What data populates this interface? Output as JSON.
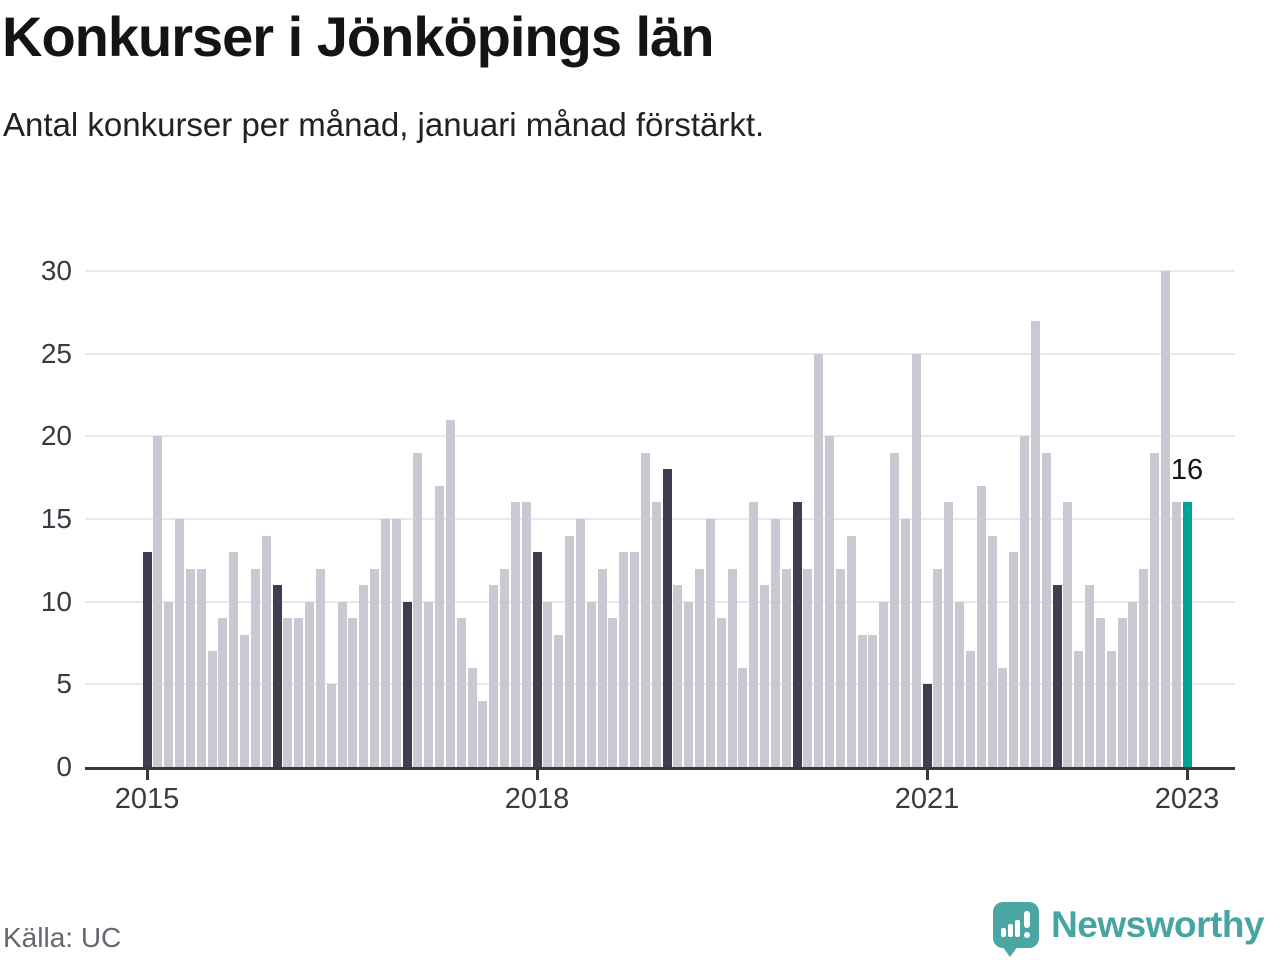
{
  "header": {
    "title": "Konkurser i Jönköpings län",
    "subtitle": "Antal konkurser per månad, januari månad förstärkt."
  },
  "footer": {
    "source": "Källa: UC",
    "brand": "Newsworthy"
  },
  "chart_data": {
    "type": "bar",
    "title": "Konkurser i Jönköpings län",
    "subtitle": "Antal konkurser per månad, januari månad förstärkt.",
    "frequency": "monthly",
    "x_start": "2015-01",
    "x_end": "2023-01",
    "values": [
      13,
      20,
      10,
      15,
      12,
      12,
      7,
      9,
      13,
      8,
      12,
      14,
      11,
      9,
      9,
      10,
      12,
      5,
      10,
      9,
      11,
      12,
      15,
      15,
      10,
      19,
      10,
      17,
      21,
      9,
      6,
      4,
      11,
      12,
      16,
      16,
      13,
      10,
      8,
      14,
      15,
      10,
      12,
      9,
      13,
      13,
      19,
      16,
      18,
      11,
      10,
      12,
      15,
      9,
      12,
      6,
      16,
      11,
      15,
      12,
      16,
      12,
      25,
      20,
      12,
      14,
      8,
      8,
      10,
      19,
      15,
      25,
      5,
      12,
      16,
      10,
      7,
      17,
      14,
      6,
      13,
      20,
      27,
      19,
      11,
      16,
      7,
      11,
      9,
      7,
      9,
      10,
      12,
      19,
      30,
      16,
      16
    ],
    "ylim": [
      0,
      30
    ],
    "yticks": [
      0,
      5,
      10,
      15,
      20,
      25,
      30
    ],
    "xticks": [
      {
        "index": 0,
        "label": "2015"
      },
      {
        "index": 36,
        "label": "2018"
      },
      {
        "index": 72,
        "label": "2021"
      },
      {
        "index": 96,
        "label": "2023"
      }
    ],
    "grid": true,
    "legend": false,
    "emphasis": {
      "base_color": "#c9c9d3",
      "january_color": "#3e3e50",
      "latest_color": "#00a396",
      "latest_label": "16",
      "latest_value": 16
    }
  }
}
